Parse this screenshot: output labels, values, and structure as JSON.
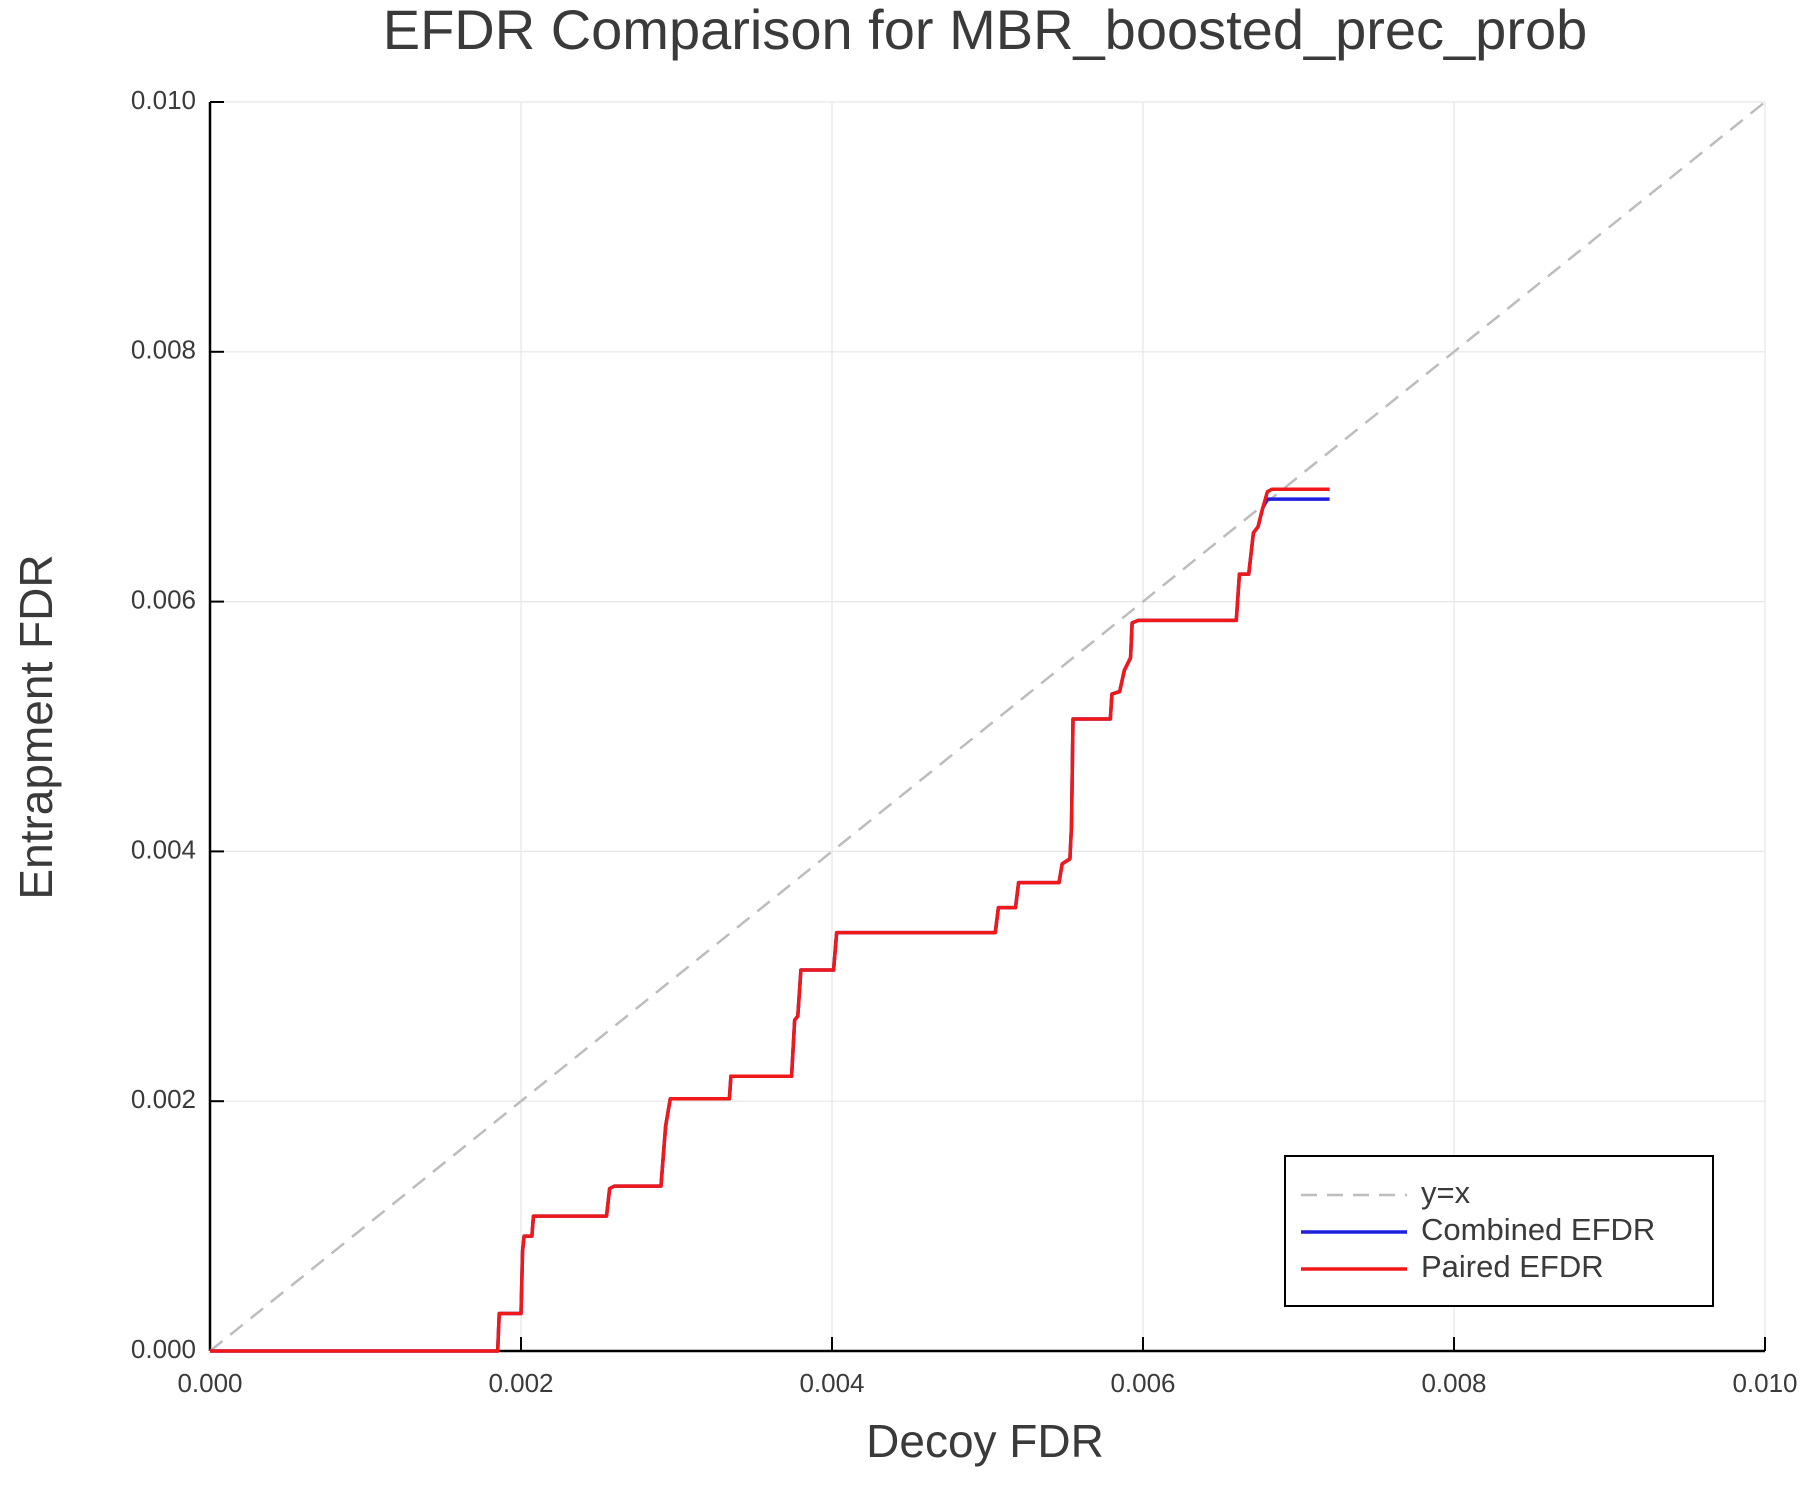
{
  "chart_data": {
    "type": "line",
    "title": "EFDR Comparison for MBR_boosted_prec_prob",
    "x_label": "Decoy FDR",
    "y_label": "Entrapment FDR",
    "xlim": [
      0,
      0.01
    ],
    "ylim": [
      0,
      0.01
    ],
    "xticks": [
      {
        "value": 0,
        "label": "0.000"
      },
      {
        "value": 0.002,
        "label": "0.002"
      },
      {
        "value": 0.004,
        "label": "0.004"
      },
      {
        "value": 0.006,
        "label": "0.006"
      },
      {
        "value": 0.008,
        "label": "0.008"
      },
      {
        "value": 0.01,
        "label": "0.010"
      }
    ],
    "yticks": [
      {
        "value": 0,
        "label": "0.000"
      },
      {
        "value": 0.002,
        "label": "0.002"
      },
      {
        "value": 0.004,
        "label": "0.004"
      },
      {
        "value": 0.006,
        "label": "0.006"
      },
      {
        "value": 0.008,
        "label": "0.008"
      },
      {
        "value": 0.01,
        "label": "0.010"
      }
    ],
    "grid": true,
    "legend": "bottom-right",
    "series": [
      {
        "name": "y=x",
        "color": "#bdbdbd",
        "dash": true,
        "x": [
          0,
          0.01
        ],
        "values": [
          0,
          0.01
        ]
      },
      {
        "name": "Combined EFDR",
        "color": "#1f1fe0",
        "dash": false,
        "x": [
          0,
          0.00185,
          0.00186,
          0.002,
          0.00201,
          0.00202,
          0.00207,
          0.00208,
          0.00255,
          0.00257,
          0.0026,
          0.0029,
          0.00293,
          0.00296,
          0.00334,
          0.00335,
          0.00374,
          0.00376,
          0.00378,
          0.0038,
          0.00401,
          0.00403,
          0.00505,
          0.00507,
          0.00518,
          0.0052,
          0.00546,
          0.00548,
          0.00553,
          0.00554,
          0.00555,
          0.00579,
          0.0058,
          0.00585,
          0.00588,
          0.00592,
          0.00593,
          0.00597,
          0.0066,
          0.00662,
          0.00668,
          0.00671,
          0.00674,
          0.00677,
          0.0068,
          0.00683,
          0.0072
        ],
        "values": [
          0,
          0,
          0.0003,
          0.0003,
          0.0008,
          0.00092,
          0.00092,
          0.00108,
          0.00108,
          0.0013,
          0.00132,
          0.00132,
          0.0018,
          0.00202,
          0.00202,
          0.0022,
          0.0022,
          0.00265,
          0.00268,
          0.00305,
          0.00305,
          0.00335,
          0.00335,
          0.00355,
          0.00355,
          0.00375,
          0.00375,
          0.0039,
          0.00394,
          0.0042,
          0.00506,
          0.00506,
          0.00526,
          0.00528,
          0.00545,
          0.00555,
          0.00583,
          0.00585,
          0.00585,
          0.00622,
          0.00622,
          0.00655,
          0.0066,
          0.00675,
          0.00682,
          0.00682,
          0.00682
        ]
      },
      {
        "name": "Paired EFDR",
        "color": "#f01818",
        "dash": false,
        "x": [
          0,
          0.00185,
          0.00186,
          0.002,
          0.00201,
          0.00202,
          0.00207,
          0.00208,
          0.00255,
          0.00257,
          0.0026,
          0.0029,
          0.00293,
          0.00296,
          0.00334,
          0.00335,
          0.00374,
          0.00376,
          0.00378,
          0.0038,
          0.00401,
          0.00403,
          0.00505,
          0.00507,
          0.00518,
          0.0052,
          0.00546,
          0.00548,
          0.00553,
          0.00554,
          0.00555,
          0.00579,
          0.0058,
          0.00585,
          0.00588,
          0.00592,
          0.00593,
          0.00597,
          0.0066,
          0.00662,
          0.00668,
          0.00671,
          0.00674,
          0.00677,
          0.0068,
          0.00683,
          0.0072
        ],
        "values": [
          0,
          0,
          0.0003,
          0.0003,
          0.0008,
          0.00092,
          0.00092,
          0.00108,
          0.00108,
          0.0013,
          0.00132,
          0.00132,
          0.0018,
          0.00202,
          0.00202,
          0.0022,
          0.0022,
          0.00265,
          0.00268,
          0.00305,
          0.00305,
          0.00335,
          0.00335,
          0.00355,
          0.00355,
          0.00375,
          0.00375,
          0.0039,
          0.00394,
          0.0042,
          0.00506,
          0.00506,
          0.00526,
          0.00528,
          0.00545,
          0.00555,
          0.00583,
          0.00585,
          0.00585,
          0.00622,
          0.00622,
          0.00655,
          0.0066,
          0.00675,
          0.00688,
          0.0069,
          0.0069
        ]
      }
    ]
  }
}
